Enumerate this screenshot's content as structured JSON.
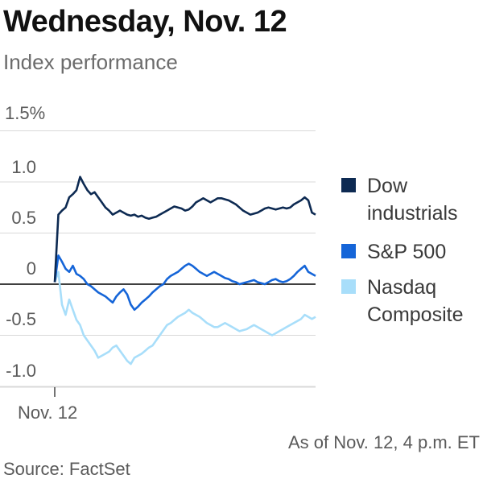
{
  "title": "Wednesday, Nov. 12",
  "subtitle": "Index performance",
  "note": "As of Nov. 12, 4 p.m. ET",
  "source": "Source: FactSet",
  "chart_data": {
    "type": "line",
    "ylim": [
      -1.1,
      1.5
    ],
    "y_ticks": [
      {
        "value": 1.5,
        "label": "1.5%"
      },
      {
        "value": 1.0,
        "label": "1.0"
      },
      {
        "value": 0.5,
        "label": "0.5"
      },
      {
        "value": 0,
        "label": "0"
      },
      {
        "value": -0.5,
        "label": "-0.5"
      },
      {
        "value": -1.0,
        "label": "-1.0"
      }
    ],
    "x_tick_label": "Nov. 12",
    "grid": true,
    "legend_position": "right",
    "series": [
      {
        "name": "Dow industrials",
        "color": "#0d2a52",
        "values": [
          0.02,
          0.68,
          0.72,
          0.75,
          0.85,
          0.88,
          0.92,
          1.05,
          0.98,
          0.92,
          0.88,
          0.9,
          0.85,
          0.8,
          0.75,
          0.72,
          0.68,
          0.7,
          0.72,
          0.7,
          0.68,
          0.67,
          0.68,
          0.66,
          0.67,
          0.65,
          0.64,
          0.65,
          0.66,
          0.68,
          0.7,
          0.72,
          0.74,
          0.76,
          0.75,
          0.74,
          0.72,
          0.73,
          0.76,
          0.8,
          0.82,
          0.84,
          0.82,
          0.8,
          0.82,
          0.84,
          0.84,
          0.83,
          0.82,
          0.8,
          0.78,
          0.75,
          0.72,
          0.7,
          0.68,
          0.69,
          0.7,
          0.72,
          0.74,
          0.75,
          0.74,
          0.73,
          0.74,
          0.75,
          0.74,
          0.75,
          0.78,
          0.8,
          0.82,
          0.85,
          0.82,
          0.7,
          0.68
        ]
      },
      {
        "name": "S&P 500",
        "color": "#1565d8",
        "values": [
          0.02,
          0.28,
          0.22,
          0.15,
          0.12,
          0.18,
          0.1,
          0.08,
          0.05,
          0.0,
          -0.02,
          -0.05,
          -0.08,
          -0.1,
          -0.12,
          -0.15,
          -0.18,
          -0.12,
          -0.08,
          -0.05,
          -0.1,
          -0.2,
          -0.25,
          -0.22,
          -0.18,
          -0.15,
          -0.12,
          -0.08,
          -0.05,
          -0.02,
          0.0,
          0.05,
          0.08,
          0.1,
          0.12,
          0.15,
          0.18,
          0.2,
          0.18,
          0.15,
          0.12,
          0.1,
          0.08,
          0.1,
          0.12,
          0.1,
          0.08,
          0.06,
          0.05,
          0.03,
          0.02,
          0.0,
          0.01,
          0.02,
          0.03,
          0.04,
          0.02,
          0.01,
          0.0,
          0.02,
          0.04,
          0.05,
          0.03,
          0.02,
          0.03,
          0.05,
          0.08,
          0.12,
          0.15,
          0.18,
          0.12,
          0.1,
          0.08
        ]
      },
      {
        "name": "Nasdaq Composite",
        "color": "#a8defa",
        "values": [
          0.02,
          0.12,
          -0.2,
          -0.3,
          -0.15,
          -0.25,
          -0.35,
          -0.4,
          -0.5,
          -0.55,
          -0.6,
          -0.65,
          -0.72,
          -0.7,
          -0.68,
          -0.66,
          -0.62,
          -0.6,
          -0.65,
          -0.7,
          -0.75,
          -0.78,
          -0.72,
          -0.7,
          -0.68,
          -0.65,
          -0.62,
          -0.6,
          -0.55,
          -0.5,
          -0.45,
          -0.4,
          -0.38,
          -0.35,
          -0.32,
          -0.3,
          -0.28,
          -0.25,
          -0.28,
          -0.3,
          -0.32,
          -0.35,
          -0.38,
          -0.4,
          -0.42,
          -0.42,
          -0.4,
          -0.38,
          -0.4,
          -0.42,
          -0.44,
          -0.46,
          -0.45,
          -0.44,
          -0.42,
          -0.4,
          -0.42,
          -0.44,
          -0.46,
          -0.48,
          -0.5,
          -0.48,
          -0.46,
          -0.44,
          -0.42,
          -0.4,
          -0.38,
          -0.36,
          -0.34,
          -0.3,
          -0.32,
          -0.34,
          -0.32
        ]
      }
    ]
  }
}
